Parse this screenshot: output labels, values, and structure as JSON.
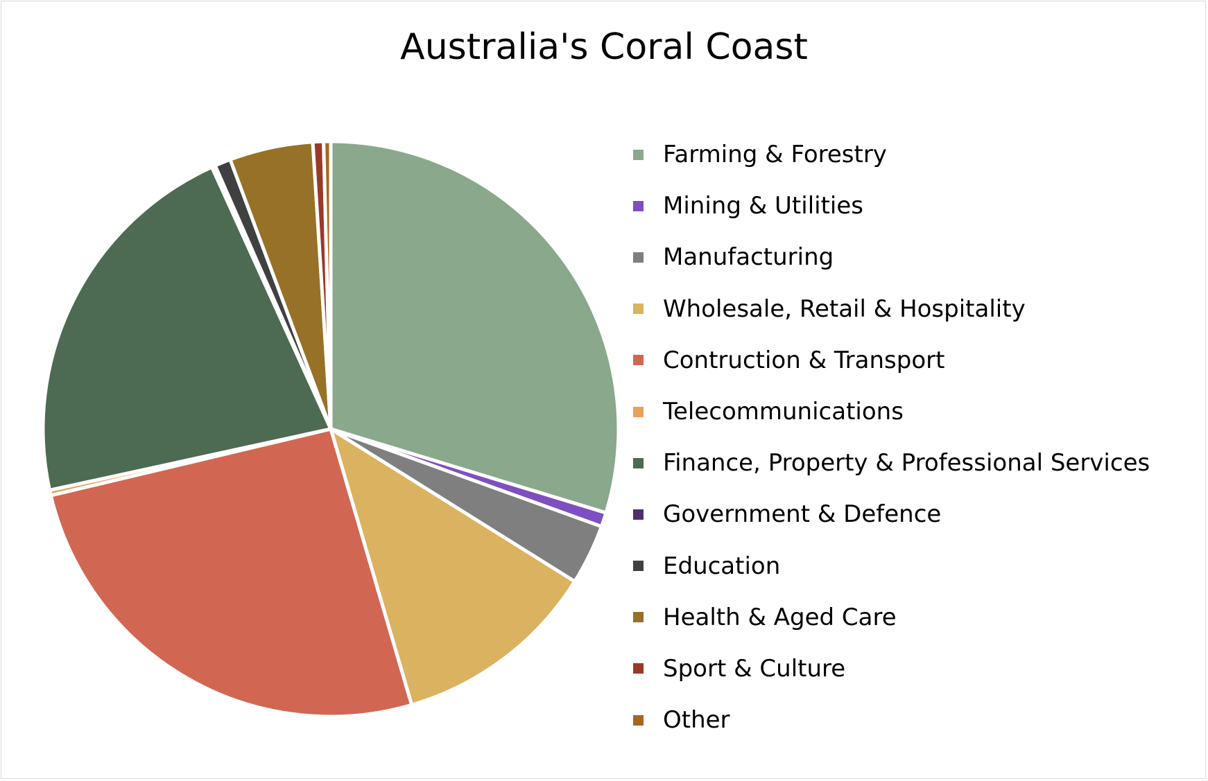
{
  "chart_data": {
    "type": "pie",
    "title": "Australia's Coral Coast",
    "legend_position": "right",
    "start_angle_deg": 0,
    "direction": "clockwise",
    "slices": [
      {
        "label": "Farming & Forestry",
        "value": 29.8,
        "color": "#8aa88c"
      },
      {
        "label": "Mining & Utilities",
        "value": 0.8,
        "color": "#7e4fbf"
      },
      {
        "label": "Manufacturing",
        "value": 3.4,
        "color": "#7f7f7f"
      },
      {
        "label": "Wholesale, Retail & Hospitality",
        "value": 11.6,
        "color": "#dbb25f"
      },
      {
        "label": "Contruction & Transport",
        "value": 25.9,
        "color": "#d16753"
      },
      {
        "label": "Telecommunications",
        "value": 0.3,
        "color": "#e9a25a"
      },
      {
        "label": "Finance, Property & Professional Services",
        "value": 21.7,
        "color": "#4d6a53"
      },
      {
        "label": "Government & Defence",
        "value": 0.2,
        "color": "#4e3070"
      },
      {
        "label": "Education",
        "value": 0.9,
        "color": "#404040"
      },
      {
        "label": "Health & Aged Care",
        "value": 4.7,
        "color": "#977127"
      },
      {
        "label": "Sport & Culture",
        "value": 0.6,
        "color": "#983a2a"
      },
      {
        "label": "Other",
        "value": 0.4,
        "color": "#a8671f"
      }
    ]
  }
}
